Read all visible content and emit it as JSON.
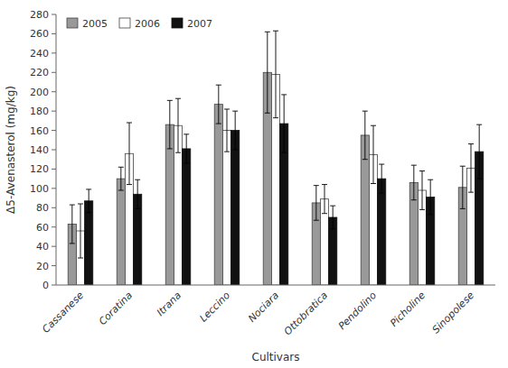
{
  "chart_data": {
    "type": "bar",
    "xlabel": "Cultivars",
    "ylabel": "Δ5-Avenasterol (mg/kg)",
    "categories": [
      "Cassanese",
      "Coratina",
      "Itrana",
      "Leccino",
      "Nociara",
      "Ottobratica",
      "Pendolino",
      "Picholine",
      "Sinopolese"
    ],
    "series": [
      {
        "name": "2005",
        "color": "#999999",
        "values": [
          63,
          110,
          166,
          187,
          220,
          85,
          155,
          106,
          101
        ],
        "errors": [
          20,
          12,
          25,
          20,
          42,
          18,
          25,
          18,
          22
        ]
      },
      {
        "name": "2006",
        "color": "#ffffff",
        "values": [
          56,
          136,
          165,
          160,
          218,
          89,
          135,
          98,
          121
        ],
        "errors": [
          28,
          32,
          28,
          22,
          45,
          15,
          30,
          20,
          25
        ]
      },
      {
        "name": "2007",
        "color": "#111111",
        "values": [
          87,
          94,
          141,
          160,
          167,
          70,
          110,
          91,
          138
        ],
        "errors": [
          12,
          15,
          15,
          20,
          30,
          12,
          15,
          18,
          28
        ]
      }
    ],
    "ylim": [
      0,
      280
    ],
    "yticks": [
      0,
      20,
      40,
      60,
      80,
      100,
      120,
      140,
      160,
      180,
      200,
      220,
      240,
      260,
      280
    ],
    "legend": "upper left",
    "grid": false
  }
}
